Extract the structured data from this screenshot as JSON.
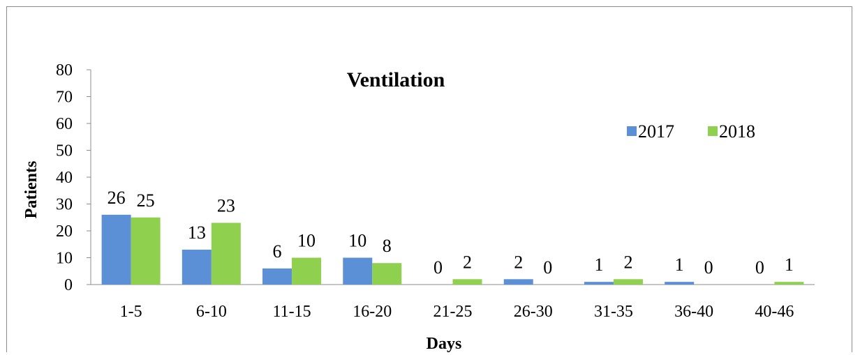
{
  "chart_data": {
    "type": "bar",
    "title": "Ventilation",
    "xlabel": "Days",
    "ylabel": "Patients",
    "ylim": [
      0,
      80
    ],
    "yticks": [
      0,
      10,
      20,
      30,
      40,
      50,
      60,
      70,
      80
    ],
    "categories": [
      "1-5",
      "6-10",
      "11-15",
      "16-20",
      "21-25",
      "26-30",
      "31-35",
      "36-40",
      "40-46"
    ],
    "series": [
      {
        "name": "2017",
        "color": "#5b8fd6",
        "values": [
          26,
          13,
          6,
          10,
          0,
          2,
          1,
          1,
          0
        ]
      },
      {
        "name": "2018",
        "color": "#8fd14f",
        "values": [
          25,
          23,
          10,
          8,
          2,
          0,
          2,
          0,
          1
        ]
      }
    ],
    "grid": false,
    "legend_position": "top-right",
    "data_labels": true
  }
}
